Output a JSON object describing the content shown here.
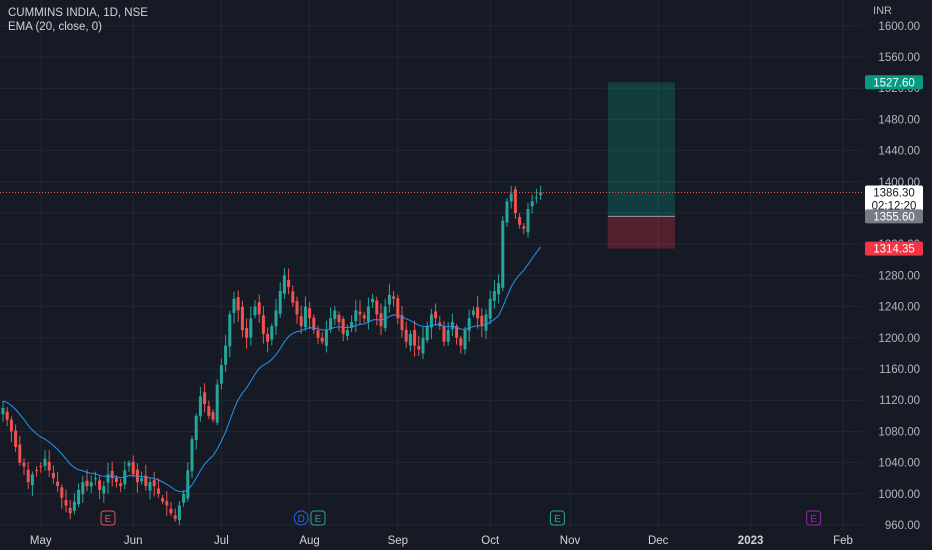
{
  "header": {
    "symbol_line": "CUMMINS INDIA, 1D, NSE",
    "indicator_line": "EMA (20, close, 0)",
    "currency": "INR"
  },
  "colors": {
    "background": "#161a25",
    "grid": "#232733",
    "up": "#26a69a",
    "down": "#ef5350",
    "ema": "#2196f3",
    "axis_text": "#b2b5be"
  },
  "chart_data": {
    "type": "candlestick",
    "title": "CUMMINS INDIA, 1D, NSE",
    "ylim": [
      960,
      1600
    ],
    "y_ticks": [
      960,
      1000,
      1040,
      1080,
      1120,
      1160,
      1200,
      1240,
      1280,
      1320,
      1360,
      1400,
      1440,
      1480,
      1520,
      1560,
      1600
    ],
    "y_tick_labels": [
      "960.00",
      "1000.00",
      "1040.00",
      "1080.00",
      "1120.00",
      "1160.00",
      "1200.00",
      "1240.00",
      "1280.00",
      "1320.00",
      "1360.00",
      "1400.00",
      "1440.00",
      "1480.00",
      "1520.00",
      "1560.00",
      "1600.00"
    ],
    "x_labels": [
      {
        "label": "May",
        "bar": 9
      },
      {
        "label": "Jun",
        "bar": 31
      },
      {
        "label": "Jul",
        "bar": 52
      },
      {
        "label": "Aug",
        "bar": 73
      },
      {
        "label": "Sep",
        "bar": 94
      },
      {
        "label": "Oct",
        "bar": 116
      },
      {
        "label": "Nov",
        "bar": 135
      },
      {
        "label": "Dec",
        "bar": 156
      },
      {
        "label": "2023",
        "bar": 178,
        "bold": true
      },
      {
        "label": "Feb",
        "bar": 200
      }
    ],
    "grid": true,
    "closes": [
      1110,
      1095,
      1080,
      1060,
      1040,
      1035,
      1015,
      1025,
      1030,
      1035,
      1045,
      1030,
      1020,
      1010,
      995,
      985,
      975,
      990,
      1005,
      1015,
      1010,
      1015,
      1020,
      1005,
      1010,
      1025,
      1020,
      1015,
      1010,
      1030,
      1040,
      1025,
      1015,
      1020,
      1010,
      1015,
      1010,
      1000,
      990,
      985,
      975,
      968,
      985,
      1000,
      1030,
      1070,
      1100,
      1125,
      1115,
      1100,
      1095,
      1140,
      1165,
      1190,
      1230,
      1250,
      1235,
      1210,
      1200,
      1225,
      1240,
      1230,
      1205,
      1195,
      1215,
      1235,
      1260,
      1280,
      1265,
      1245,
      1230,
      1215,
      1240,
      1225,
      1210,
      1200,
      1195,
      1210,
      1225,
      1235,
      1220,
      1205,
      1210,
      1220,
      1235,
      1230,
      1225,
      1240,
      1250,
      1230,
      1215,
      1240,
      1255,
      1250,
      1225,
      1210,
      1195,
      1205,
      1190,
      1185,
      1200,
      1215,
      1230,
      1225,
      1215,
      1195,
      1210,
      1220,
      1200,
      1190,
      1210,
      1225,
      1235,
      1225,
      1215,
      1230,
      1250,
      1260,
      1270,
      1350,
      1375,
      1385,
      1360,
      1345,
      1340,
      1365,
      1375,
      1380,
      1386.3
    ],
    "ema_period": 20,
    "position": {
      "type": "long",
      "entry": 1355.6,
      "target": 1527.6,
      "stop": 1314.35,
      "start_bar": 144,
      "end_bar": 160
    },
    "last_price": 1386.3,
    "countdown": "02:12:20",
    "price_labels": [
      {
        "text": "1527.60",
        "value": 1527.6,
        "bg": "#089981",
        "fg": "#ffffff"
      },
      {
        "text": "1386.30",
        "value": 1386.3,
        "bg": "#ffffff",
        "fg": "#131722",
        "countdown": "02:12:20"
      },
      {
        "text": "1355.60",
        "value": 1355.6,
        "bg": "#787b86",
        "fg": "#ffffff"
      },
      {
        "text": "1314.35",
        "value": 1314.35,
        "bg": "#f23645",
        "fg": "#ffffff"
      }
    ],
    "events": [
      {
        "label": "E",
        "bar": 25,
        "color": "#ef5350"
      },
      {
        "label": "D",
        "bar": 71,
        "color": "#2962ff"
      },
      {
        "label": "E",
        "bar": 75,
        "color": "#26a69a"
      },
      {
        "label": "E",
        "bar": 132,
        "color": "#26a69a"
      },
      {
        "label": "E",
        "bar": 193,
        "color": "#9c27b0"
      }
    ]
  }
}
